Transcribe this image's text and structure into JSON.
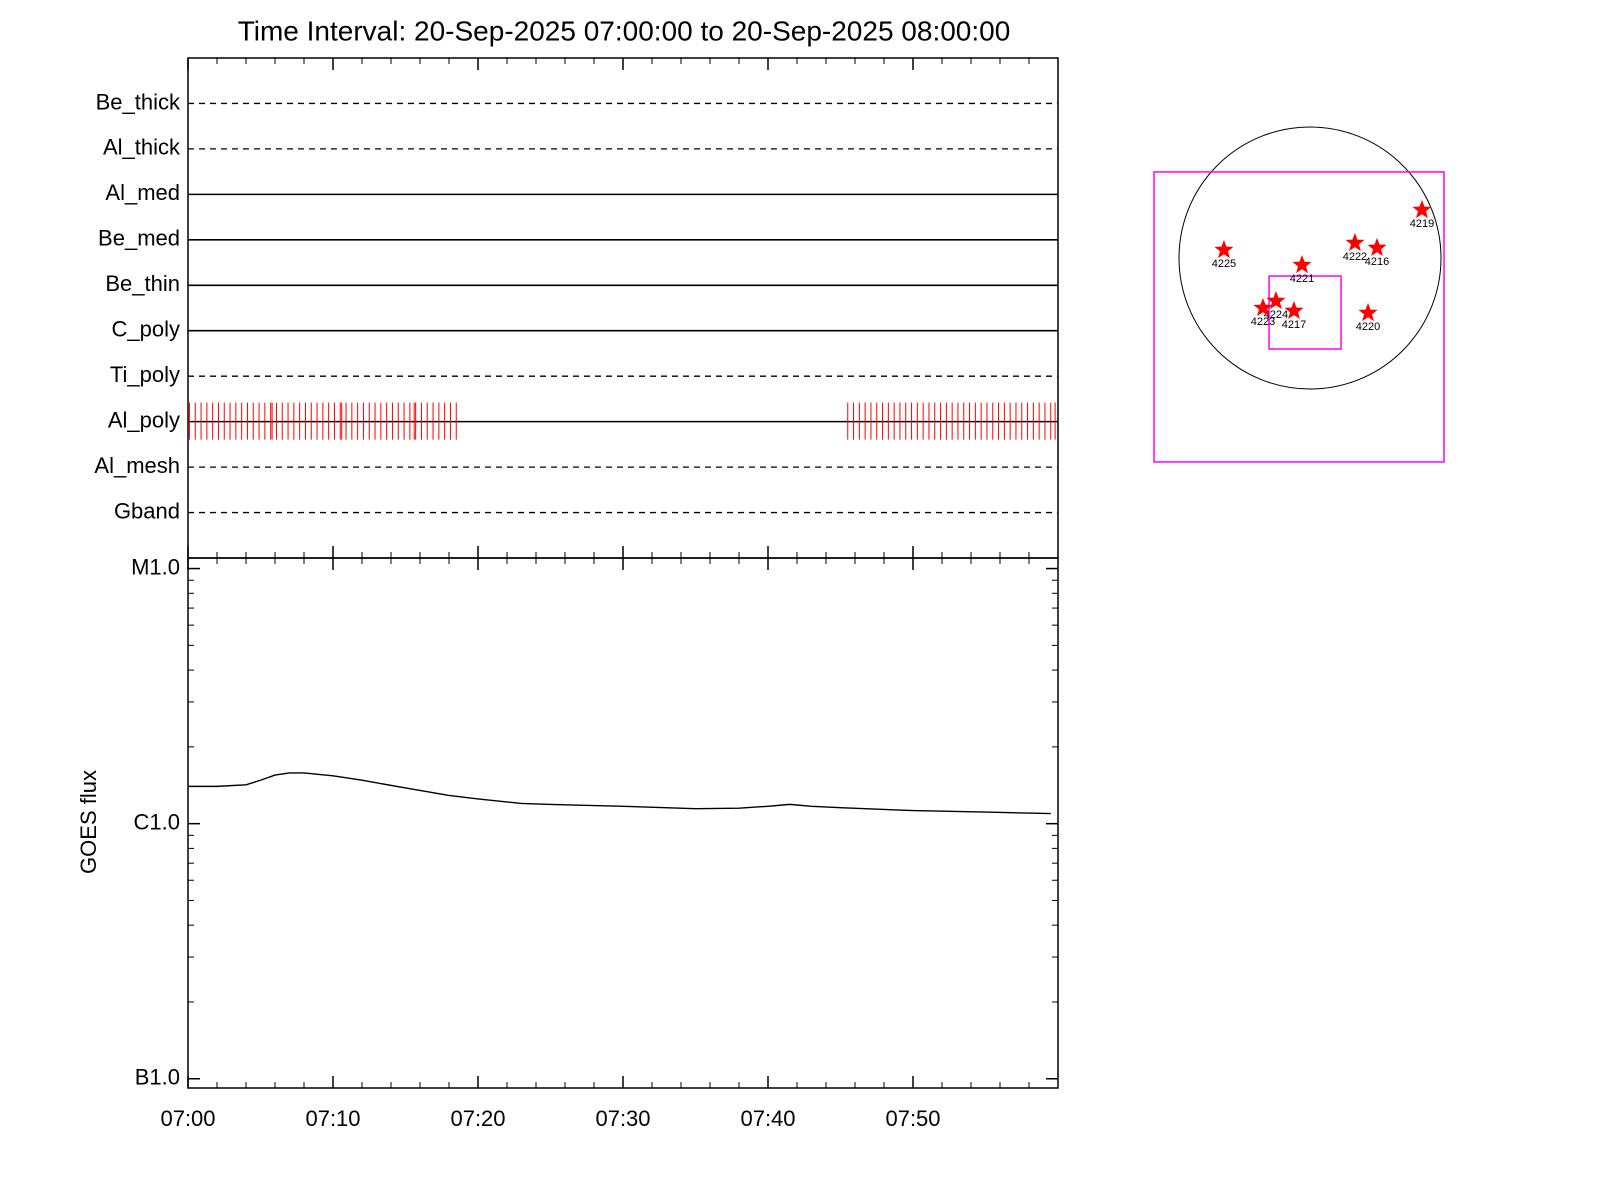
{
  "chart_data": [
    {
      "type": "timeline",
      "title": "Time Interval: 20-Sep-2025 07:00:00 to 20-Sep-2025 08:00:00",
      "xlim": [
        0,
        60
      ],
      "xticks": [
        0,
        10,
        20,
        30,
        40,
        50
      ],
      "minor_xticks": [
        2,
        4,
        6,
        8,
        12,
        14,
        16,
        18,
        22,
        24,
        26,
        28,
        32,
        34,
        36,
        38,
        42,
        44,
        46,
        48,
        52,
        54,
        56,
        58
      ],
      "series": [
        {
          "name": "Be_thick",
          "style": "dashed"
        },
        {
          "name": "Al_thick",
          "style": "dashed"
        },
        {
          "name": "Al_med",
          "style": "solid"
        },
        {
          "name": "Be_med",
          "style": "solid"
        },
        {
          "name": "Be_thin",
          "style": "solid"
        },
        {
          "name": "C_poly",
          "style": "solid"
        },
        {
          "name": "Ti_poly",
          "style": "dashed"
        },
        {
          "name": "Al_poly",
          "style": "solid",
          "color": "#ff0000",
          "x": [
            0.1,
            0.5,
            0.9,
            1.3,
            1.7,
            2.1,
            2.5,
            2.9,
            3.3,
            3.7,
            4.1,
            4.5,
            4.9,
            5.3,
            5.7,
            5.8,
            6.1,
            6.5,
            6.9,
            7.3,
            7.7,
            8.1,
            8.5,
            8.9,
            9.3,
            9.7,
            10.1,
            10.5,
            10.6,
            10.9,
            11.3,
            11.7,
            12.1,
            12.5,
            12.9,
            13.3,
            13.7,
            14.1,
            14.5,
            14.9,
            15.3,
            15.6,
            15.7,
            16.1,
            16.5,
            16.9,
            17.3,
            17.7,
            18.1,
            18.5,
            45.5,
            45.9,
            46.3,
            46.7,
            47.1,
            47.5,
            47.9,
            48.3,
            48.7,
            49.1,
            49.5,
            49.9,
            50.3,
            50.7,
            51.1,
            51.5,
            51.9,
            52.3,
            52.7,
            53.1,
            53.5,
            53.9,
            54.3,
            54.7,
            55.1,
            55.5,
            55.9,
            56.3,
            56.7,
            57.1,
            57.5,
            57.9,
            58.3,
            58.7,
            59.1,
            59.5,
            59.8
          ]
        },
        {
          "name": "Al_mesh",
          "style": "dashed"
        },
        {
          "name": "Gband",
          "style": "dashed"
        }
      ]
    },
    {
      "type": "line",
      "ylabel": "GOES flux",
      "log_y": true,
      "color": "#000000",
      "xlim": [
        0,
        60
      ],
      "xticks": [
        {
          "value": 0,
          "label": "07:00"
        },
        {
          "value": 10,
          "label": "07:10"
        },
        {
          "value": 20,
          "label": "07:20"
        },
        {
          "value": 30,
          "label": "07:30"
        },
        {
          "value": 40,
          "label": "07:40"
        },
        {
          "value": 50,
          "label": "07:50"
        }
      ],
      "minor_xticks": [
        2,
        4,
        6,
        8,
        12,
        14,
        16,
        18,
        22,
        24,
        26,
        28,
        32,
        34,
        36,
        38,
        42,
        44,
        46,
        48,
        52,
        54,
        56,
        58
      ],
      "ylim": [
        9.2e-08,
        1.1e-05
      ],
      "yticks": [
        {
          "value": 1e-07,
          "label": "B1.0"
        },
        {
          "value": 1e-06,
          "label": "C1.0"
        },
        {
          "value": 1e-05,
          "label": "M1.0"
        }
      ],
      "minor_yticks": [
        2e-07,
        3e-07,
        4e-07,
        5e-07,
        6e-07,
        7e-07,
        8e-07,
        9e-07,
        2e-06,
        3e-06,
        4e-06,
        5e-06,
        6e-06,
        7e-06,
        8e-06,
        9e-06
      ],
      "x": [
        0,
        2,
        4,
        5,
        6,
        7,
        8,
        10,
        12,
        15,
        18,
        20,
        23,
        25,
        30,
        35,
        38,
        40,
        41.5,
        43,
        45,
        50,
        55,
        59.5
      ],
      "values": [
        1.4e-06,
        1.4e-06,
        1.42e-06,
        1.48e-06,
        1.55e-06,
        1.58e-06,
        1.58e-06,
        1.54e-06,
        1.48e-06,
        1.38e-06,
        1.29e-06,
        1.25e-06,
        1.2e-06,
        1.19e-06,
        1.17e-06,
        1.145e-06,
        1.15e-06,
        1.17e-06,
        1.19e-06,
        1.17e-06,
        1.155e-06,
        1.125e-06,
        1.11e-06,
        1.095e-06
      ]
    },
    {
      "type": "map",
      "sun_radius": 950,
      "color": "#ff0000",
      "boxes": [
        {
          "color": "#ff00ff",
          "x": [
            -1131,
            972
          ],
          "y": [
            -1479,
            624
          ]
        },
        {
          "color": "#ff00ff",
          "x": [
            -297,
            225
          ],
          "y": [
            -660,
            -131
          ]
        }
      ],
      "points": [
        {
          "label": "4219",
          "x": 812,
          "y": 348
        },
        {
          "label": "4225",
          "x": -624,
          "y": 58
        },
        {
          "label": "4221",
          "x": -58,
          "y": -51
        },
        {
          "label": "4222",
          "x": 326,
          "y": 109
        },
        {
          "label": "4216",
          "x": 486,
          "y": 73
        },
        {
          "label": "4220",
          "x": 421,
          "y": -399
        },
        {
          "label": "4224",
          "x": -247,
          "y": -312
        },
        {
          "label": "4223",
          "x": -341,
          "y": -363
        },
        {
          "label": "4217",
          "x": -116,
          "y": -384
        }
      ]
    }
  ]
}
